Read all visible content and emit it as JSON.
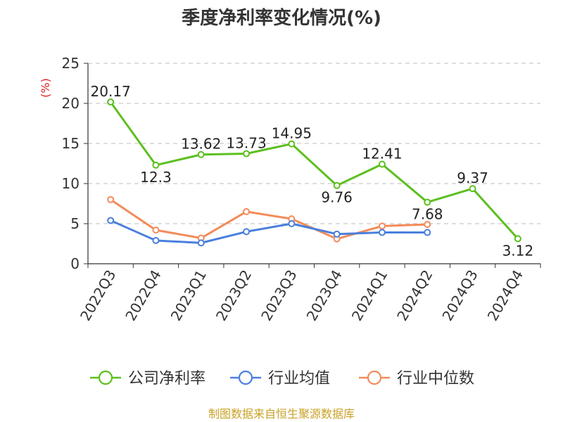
{
  "chart_data": {
    "type": "line",
    "title": "季度净利率变化情况(%)",
    "ylabel": "(%)",
    "xlabel": "",
    "ylim": [
      0,
      25
    ],
    "yticks": [
      "0",
      "5",
      "10",
      "15",
      "20",
      "25"
    ],
    "grid": true,
    "legend_position": "bottom",
    "categories": [
      "2022Q3",
      "2022Q4",
      "2023Q1",
      "2023Q2",
      "2023Q3",
      "2023Q4",
      "2024Q1",
      "2024Q2",
      "2024Q3",
      "2024Q4"
    ],
    "series": [
      {
        "name": "公司净利率",
        "color": "#5cbf1f",
        "values": [
          20.17,
          12.3,
          13.62,
          13.73,
          14.95,
          9.76,
          12.41,
          7.68,
          9.37,
          3.12
        ],
        "labels": [
          "20.17",
          "12.3",
          "13.62",
          "13.73",
          "14.95",
          "9.76",
          "12.41",
          "7.68",
          "9.37",
          "3.12"
        ]
      },
      {
        "name": "行业均值",
        "color": "#4a7fdc",
        "values": [
          5.4,
          2.9,
          2.6,
          4.0,
          5.0,
          3.7,
          3.9,
          3.9,
          null,
          null
        ]
      },
      {
        "name": "行业中位数",
        "color": "#f28c5a",
        "values": [
          8.0,
          4.2,
          3.2,
          6.5,
          5.6,
          3.1,
          4.7,
          4.9,
          null,
          null
        ]
      }
    ],
    "source": "制图数据来自恒生聚源数据库"
  }
}
